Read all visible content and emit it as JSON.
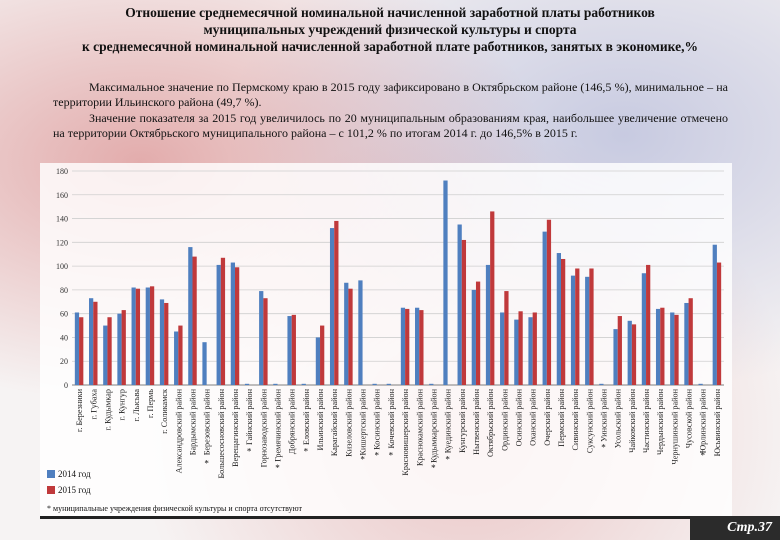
{
  "title": {
    "line1": "Отношение среднемесячной номинальной начисленной заработной платы работников",
    "line2": "муниципальных учреждений физической культуры и спорта",
    "line3": "к среднемесячной номинальной начисленной заработной плате работников, занятых в экономике,%"
  },
  "paragraph1": "Максимальное значение по Пермскому краю в 2015 году зафиксировано в Октябрьском районе (146,5 %), минимальное – на территории Ильинского района (49,7 %).",
  "paragraph2": "Значение показателя за 2015 год увеличилось по 20 муниципальным образованиям края, наибольшее увеличение отмечено на территории Октябрьского муниципального района – с 101,2 % по итогам 2014 г. до 146,5% в 2015 г.",
  "footnote": "* муниципальные учреждения физической культуры и спорта отсутствуют",
  "page_label": "Стр.37",
  "colors": {
    "series2014": "#4f7fbf",
    "series2015": "#c0393b",
    "grid": "#cfcfcf",
    "axis": "#7f7f7f"
  },
  "chart_data": {
    "type": "bar",
    "ylim": [
      0,
      180
    ],
    "yticks": [
      0,
      20,
      40,
      60,
      80,
      100,
      120,
      140,
      160,
      180
    ],
    "grid": true,
    "legend_position": "bottom-left",
    "categories": [
      "г. Березники",
      "г. Губаха",
      "г. Кудымкар",
      "г. Кунгур",
      "г. Лысьва",
      "г. Пермь",
      "г. Соликамск",
      "Александровский район",
      "Бардымский район",
      "Березовский район",
      "Большесосновский район",
      "Верещагинский район",
      "Гайнский район",
      "Горнозаводский район",
      "Гремячинский район",
      "Добрянский район",
      "Еловский район",
      "Ильинский район",
      "Карагайский район",
      "Кизеловский район",
      "Кишертский район",
      "Косинский район",
      "Кочевский район",
      "Красновишерский район",
      "Краснокамский район",
      "Кудымкарский район",
      "Куединский район",
      "Кунгурский район",
      "Нытвенский район",
      "Октябрьский район",
      "Ординский район",
      "Осинский район",
      "Оханский район",
      "Очерский район",
      "Пермский район",
      "Сивинский район",
      "Суксунский район",
      "Уинский район",
      "Усольский район",
      "Чайковский район",
      "Частинский район",
      "Чердынский район",
      "Чернушинский район",
      "Чусовской район",
      "Юрлинский район",
      "Юсьвинский район"
    ],
    "series": [
      {
        "name": "2014 год",
        "values": [
          61,
          73,
          50,
          60,
          82,
          82,
          72,
          45,
          116,
          36,
          101,
          103,
          1,
          79,
          1,
          58,
          1,
          40,
          132,
          86,
          88,
          1,
          1,
          65,
          65,
          1,
          172,
          135,
          80,
          101,
          61,
          55,
          57,
          129,
          111,
          92,
          91,
          1,
          47,
          54,
          94,
          64,
          61,
          69,
          1,
          118
        ]
      },
      {
        "name": "2015 год",
        "values": [
          57,
          70,
          57,
          63,
          81,
          83,
          69,
          50,
          108,
          0,
          107,
          99,
          0,
          73,
          0,
          59,
          0,
          50,
          138,
          81,
          0,
          0,
          0,
          64,
          63,
          0,
          0,
          122,
          87,
          146,
          79,
          62,
          61,
          139,
          106,
          98,
          98,
          0,
          58,
          51,
          101,
          65,
          59,
          73,
          0,
          103
        ]
      }
    ],
    "absent_marker": "*",
    "absent_indices": [
      9,
      12,
      14,
      16,
      20,
      21,
      22,
      25,
      26,
      37,
      44
    ]
  }
}
